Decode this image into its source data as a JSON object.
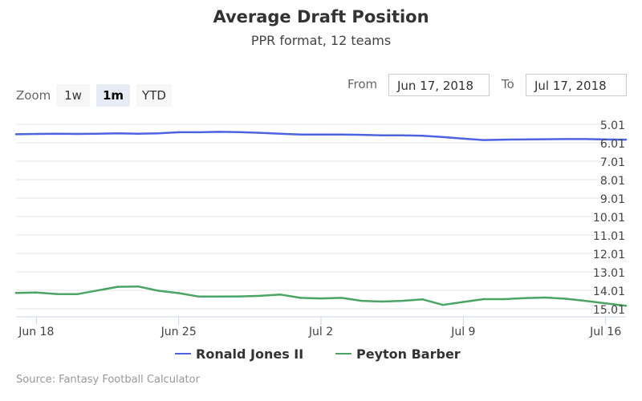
{
  "title": "Average Draft Position",
  "subtitle": "PPR format, 12 teams",
  "zoom": {
    "label": "Zoom",
    "buttons": [
      {
        "label": "1w",
        "active": false
      },
      {
        "label": "1m",
        "active": true
      },
      {
        "label": "YTD",
        "active": false
      }
    ]
  },
  "range": {
    "from_label": "From",
    "from_value": "Jun 17, 2018",
    "to_label": "To",
    "to_value": "Jul 17, 2018"
  },
  "credits": "Source: Fantasy Football Calculator",
  "colors": {
    "ronald": "#4d63e0",
    "peyton": "#4aa564",
    "grid": "#e6e6e6",
    "axis_line": "#ccd6eb"
  },
  "chart_data": {
    "type": "line",
    "title": "Average Draft Position",
    "subtitle": "PPR format, 12 teams",
    "y_reversed": true,
    "ylim": [
      5.01,
      15.01
    ],
    "y_ticks": [
      "5.01",
      "6.01",
      "7.01",
      "8.01",
      "9.01",
      "10.01",
      "11.01",
      "12.01",
      "13.01",
      "14.01",
      "15.01"
    ],
    "x_range": [
      "2018-06-17",
      "2018-07-17"
    ],
    "x_ticks": [
      "Jun 18",
      "Jun 25",
      "Jul 2",
      "Jul 9",
      "Jul 16"
    ],
    "legend_position": "bottom-center",
    "grid": true,
    "x": [
      "2018-06-17",
      "2018-06-18",
      "2018-06-19",
      "2018-06-20",
      "2018-06-21",
      "2018-06-22",
      "2018-06-23",
      "2018-06-24",
      "2018-06-25",
      "2018-06-26",
      "2018-06-27",
      "2018-06-28",
      "2018-06-29",
      "2018-06-30",
      "2018-07-01",
      "2018-07-02",
      "2018-07-03",
      "2018-07-04",
      "2018-07-05",
      "2018-07-06",
      "2018-07-07",
      "2018-07-08",
      "2018-07-09",
      "2018-07-10",
      "2018-07-11",
      "2018-07-12",
      "2018-07-13",
      "2018-07-14",
      "2018-07-15",
      "2018-07-16",
      "2018-07-17"
    ],
    "series": [
      {
        "name": "Ronald Jones II",
        "values": [
          5.55,
          5.53,
          5.52,
          5.53,
          5.52,
          5.5,
          5.52,
          5.5,
          5.44,
          5.44,
          5.42,
          5.43,
          5.47,
          5.52,
          5.56,
          5.56,
          5.56,
          5.58,
          5.61,
          5.61,
          5.63,
          5.7,
          5.79,
          5.86,
          5.84,
          5.83,
          5.82,
          5.81,
          5.81,
          5.83,
          5.84
        ]
      },
      {
        "name": "Peyton Barber",
        "values": [
          14.15,
          14.13,
          14.21,
          14.22,
          14.02,
          13.82,
          13.8,
          14.03,
          14.16,
          14.35,
          14.35,
          14.34,
          14.31,
          14.24,
          14.42,
          14.45,
          14.42,
          14.58,
          14.62,
          14.58,
          14.5,
          14.8,
          14.64,
          14.49,
          14.49,
          14.43,
          14.4,
          14.46,
          14.58,
          14.72,
          14.85
        ]
      }
    ]
  }
}
